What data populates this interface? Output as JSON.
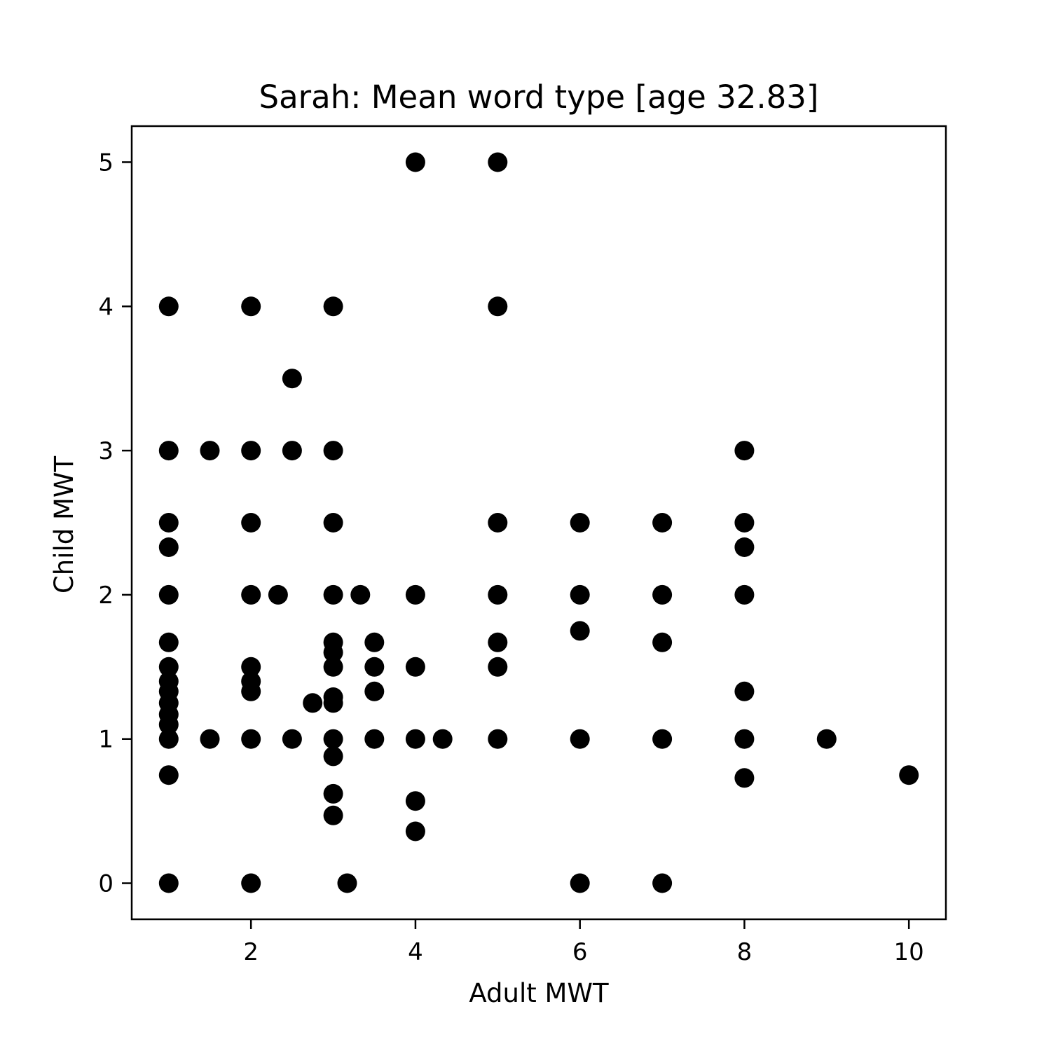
{
  "chart_data": {
    "type": "scatter",
    "title": "Sarah: Mean word type [age 32.83]",
    "xlabel": "Adult MWT",
    "ylabel": "Child MWT",
    "xlim": [
      0.55,
      10.45
    ],
    "ylim": [
      -0.25,
      5.25
    ],
    "xticks": [
      2,
      4,
      6,
      8,
      10
    ],
    "yticks": [
      0,
      1,
      2,
      3,
      4,
      5
    ],
    "grid": false,
    "marker_color": "#000000",
    "points": [
      [
        1,
        4
      ],
      [
        1,
        3
      ],
      [
        1,
        2.5
      ],
      [
        1,
        2.33
      ],
      [
        1,
        2
      ],
      [
        1,
        1.67
      ],
      [
        1,
        1.5
      ],
      [
        1,
        1.4
      ],
      [
        1,
        1.33
      ],
      [
        1,
        1.25
      ],
      [
        1,
        1.17
      ],
      [
        1,
        1.1
      ],
      [
        1,
        1
      ],
      [
        1,
        0.75
      ],
      [
        1,
        0
      ],
      [
        1.5,
        3
      ],
      [
        1.5,
        1
      ],
      [
        2,
        4
      ],
      [
        2,
        3
      ],
      [
        2,
        2.5
      ],
      [
        2,
        2
      ],
      [
        2,
        1.5
      ],
      [
        2,
        1.4
      ],
      [
        2,
        1.33
      ],
      [
        2,
        1
      ],
      [
        2,
        0
      ],
      [
        2.33,
        2
      ],
      [
        2.5,
        3.5
      ],
      [
        2.5,
        3
      ],
      [
        2.5,
        1
      ],
      [
        2.75,
        1.25
      ],
      [
        3,
        4
      ],
      [
        3,
        3
      ],
      [
        3,
        2.5
      ],
      [
        3,
        2
      ],
      [
        3,
        1.67
      ],
      [
        3,
        1.6
      ],
      [
        3,
        1.5
      ],
      [
        3,
        1.29
      ],
      [
        3,
        1.25
      ],
      [
        3,
        1
      ],
      [
        3,
        0.88
      ],
      [
        3,
        0.62
      ],
      [
        3,
        0.47
      ],
      [
        3.17,
        0
      ],
      [
        3.33,
        2
      ],
      [
        3.5,
        1.67
      ],
      [
        3.5,
        1.5
      ],
      [
        3.5,
        1.33
      ],
      [
        3.5,
        1
      ],
      [
        4,
        5
      ],
      [
        4,
        2
      ],
      [
        4,
        1.5
      ],
      [
        4,
        1
      ],
      [
        4,
        0.57
      ],
      [
        4,
        0.36
      ],
      [
        4.33,
        1
      ],
      [
        5,
        5
      ],
      [
        5,
        4
      ],
      [
        5,
        2.5
      ],
      [
        5,
        2
      ],
      [
        5,
        1.67
      ],
      [
        5,
        1.5
      ],
      [
        5,
        1
      ],
      [
        6,
        2.5
      ],
      [
        6,
        2
      ],
      [
        6,
        1.75
      ],
      [
        6,
        1
      ],
      [
        6,
        0
      ],
      [
        7,
        2.5
      ],
      [
        7,
        2
      ],
      [
        7,
        1.67
      ],
      [
        7,
        1
      ],
      [
        7,
        0
      ],
      [
        8,
        3
      ],
      [
        8,
        2.5
      ],
      [
        8,
        2.33
      ],
      [
        8,
        2
      ],
      [
        8,
        1.33
      ],
      [
        8,
        1
      ],
      [
        8,
        0.73
      ],
      [
        9,
        1
      ],
      [
        10,
        0.75
      ]
    ]
  }
}
